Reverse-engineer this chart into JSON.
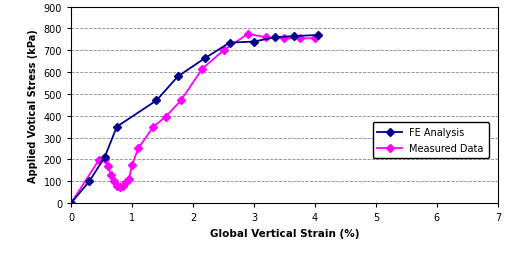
{
  "fe_x": [
    0,
    0.3,
    0.55,
    0.75,
    1.4,
    1.75,
    2.2,
    2.6,
    3.0,
    3.35,
    3.65,
    4.05
  ],
  "fe_y": [
    0,
    100,
    210,
    350,
    470,
    580,
    665,
    735,
    740,
    760,
    765,
    770
  ],
  "meas_x": [
    0,
    0.45,
    0.55,
    0.6,
    0.65,
    0.7,
    0.75,
    0.8,
    0.85,
    0.9,
    0.95,
    1.0,
    1.1,
    1.35,
    1.55,
    1.8,
    2.15,
    2.5,
    2.9,
    3.2,
    3.5,
    3.75,
    4.0
  ],
  "meas_y": [
    0,
    195,
    200,
    170,
    130,
    100,
    80,
    75,
    80,
    95,
    110,
    175,
    250,
    350,
    395,
    470,
    615,
    700,
    775,
    760,
    755,
    755,
    755
  ],
  "fe_color": "#00008B",
  "meas_color": "#FF00FF",
  "fe_label": "FE Analysis",
  "meas_label": "Measured Data",
  "xlabel": "Global Vertical Strain (%)",
  "ylabel": "Applied Votical Stress (kPa)",
  "xlim": [
    0,
    7
  ],
  "ylim": [
    0,
    900
  ],
  "xticks": [
    0,
    1,
    2,
    3,
    4,
    5,
    6,
    7
  ],
  "yticks": [
    0,
    100,
    200,
    300,
    400,
    500,
    600,
    700,
    800,
    900
  ],
  "bg_color": "#FFFFFF",
  "grid_color": "#888888",
  "marker_size": 4,
  "linewidth": 1.3
}
